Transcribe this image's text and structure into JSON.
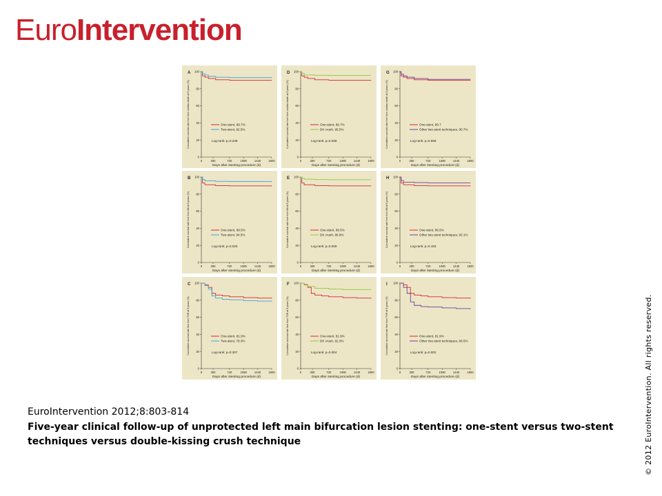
{
  "header": {
    "logo_light": "Euro",
    "logo_bold": "Intervention"
  },
  "caption": {
    "citation": "EuroIntervention 2012;8:803-814",
    "title": "Five-year clinical follow-up of unprotected left main bifurcation lesion stenting: one-stent versus two-stent techniques versus double-kissing crush technique"
  },
  "copyright": "© 2012 EuroIntervention. All rights reserved.",
  "colors": {
    "panel_bg": "#ece6c6",
    "one_stent": "#d9232e",
    "two_stent": "#3aa3d8",
    "dk_crush": "#8cc63f",
    "other_two_stent": "#6b3d9a"
  },
  "chart_data": [
    {
      "type": "line",
      "panel": "A",
      "xlabel": "Days after stenting procedure (d)",
      "ylabel": "Cumulative survival rate free from cardiac death at 5 years (%)",
      "x_ticks": [
        0,
        300,
        720,
        1080,
        1440,
        1800
      ],
      "y_ticks": [
        0,
        20,
        40,
        60,
        80,
        100
      ],
      "xlim": [
        0,
        1800
      ],
      "ylim": [
        0,
        100
      ],
      "logrank": "Log-rank: p=0.238",
      "series": [
        {
          "name": "One-stent, 89.7%",
          "color": "#d9232e",
          "x": [
            0,
            30,
            90,
            180,
            365,
            720,
            1800
          ],
          "y": [
            100,
            95,
            93.5,
            92,
            90.5,
            90,
            89.7
          ]
        },
        {
          "name": "Two-stent, 92.5%",
          "color": "#3aa3d8",
          "x": [
            0,
            30,
            90,
            180,
            365,
            720,
            1800
          ],
          "y": [
            100,
            97.5,
            96,
            94.5,
            93.5,
            93,
            92.5
          ]
        }
      ]
    },
    {
      "type": "line",
      "panel": "B",
      "xlabel": "Days after stenting procedure (d)",
      "ylabel": "Cumulative survival rate free from MI at 5 years (%)",
      "x_ticks": [
        0,
        300,
        720,
        1080,
        1440,
        1800
      ],
      "y_ticks": [
        0,
        20,
        40,
        60,
        80,
        100
      ],
      "xlim": [
        0,
        1800
      ],
      "ylim": [
        0,
        100
      ],
      "logrank": "Log-rank: p=0.025",
      "series": [
        {
          "name": "One-stent, 89.5%",
          "color": "#d9232e",
          "x": [
            0,
            30,
            90,
            365,
            720,
            1800
          ],
          "y": [
            100,
            93,
            91,
            90,
            89.7,
            89.5
          ]
        },
        {
          "name": "Two-stent, 94.5%",
          "color": "#3aa3d8",
          "x": [
            0,
            30,
            90,
            365,
            720,
            1800
          ],
          "y": [
            100,
            97,
            95.5,
            95,
            94.7,
            94.5
          ]
        }
      ]
    },
    {
      "type": "line",
      "panel": "C",
      "xlabel": "Days after stenting procedure (d)",
      "ylabel": "Cumulative survival rate free from TVR at 5 years (%)",
      "x_ticks": [
        0,
        300,
        720,
        1080,
        1440,
        1800
      ],
      "y_ticks": [
        0,
        20,
        40,
        60,
        80,
        100
      ],
      "xlim": [
        0,
        1800
      ],
      "ylim": [
        0,
        100
      ],
      "logrank": "Log-rank: p=0.307",
      "series": [
        {
          "name": "One-stent, 81.9%",
          "color": "#d9232e",
          "x": [
            0,
            90,
            180,
            270,
            365,
            540,
            720,
            1080,
            1440,
            1800
          ],
          "y": [
            100,
            98,
            95,
            88,
            86,
            85,
            84,
            83,
            82.5,
            81.9
          ]
        },
        {
          "name": "Two-stent, 78.3%",
          "color": "#3aa3d8",
          "x": [
            0,
            90,
            180,
            270,
            365,
            540,
            720,
            1080,
            1440,
            1800
          ],
          "y": [
            100,
            97,
            93,
            85,
            82.5,
            81,
            80.5,
            79.5,
            79,
            78.3
          ]
        }
      ]
    },
    {
      "type": "line",
      "panel": "D",
      "xlabel": "Days after stenting procedure (d)",
      "ylabel": "Cumulative survival rate free from cardiac death at 5 years (%)",
      "x_ticks": [
        0,
        300,
        720,
        1080,
        1440,
        1800
      ],
      "y_ticks": [
        0,
        20,
        40,
        60,
        80,
        100
      ],
      "xlim": [
        0,
        1800
      ],
      "ylim": [
        0,
        100
      ],
      "logrank": "Log-rank: p=0.038",
      "series": [
        {
          "name": "One-stent, 89.7%",
          "color": "#d9232e",
          "x": [
            0,
            30,
            90,
            180,
            365,
            720,
            1800
          ],
          "y": [
            100,
            95,
            93.5,
            92,
            90.5,
            90,
            89.7
          ]
        },
        {
          "name": "DK crush, 95.5%",
          "color": "#8cc63f",
          "x": [
            0,
            30,
            90,
            365,
            720,
            1800
          ],
          "y": [
            100,
            98,
            96,
            95.7,
            95.5,
            95.5
          ]
        }
      ]
    },
    {
      "type": "line",
      "panel": "E",
      "xlabel": "Days after stenting procedure (d)",
      "ylabel": "Cumulative survival rate free from MI at 5 years (%)",
      "x_ticks": [
        0,
        300,
        720,
        1080,
        1440,
        1800
      ],
      "y_ticks": [
        0,
        20,
        40,
        60,
        80,
        100
      ],
      "xlim": [
        0,
        1800
      ],
      "ylim": [
        0,
        100
      ],
      "logrank": "Log-rank: p=0.009",
      "series": [
        {
          "name": "One-stent, 89.5%",
          "color": "#d9232e",
          "x": [
            0,
            30,
            90,
            365,
            720,
            1800
          ],
          "y": [
            100,
            93,
            91,
            90,
            89.7,
            89.5
          ]
        },
        {
          "name": "DK crush, 96.8%",
          "color": "#8cc63f",
          "x": [
            0,
            30,
            90,
            365,
            720,
            1800
          ],
          "y": [
            100,
            98.5,
            97.5,
            97,
            96.8,
            96.8
          ]
        }
      ]
    },
    {
      "type": "line",
      "panel": "F",
      "xlabel": "Days after stenting procedure (d)",
      "ylabel": "Cumulative survival rate free from TVR at 5 years (%)",
      "x_ticks": [
        0,
        300,
        720,
        1080,
        1440,
        1800
      ],
      "y_ticks": [
        0,
        20,
        40,
        60,
        80,
        100
      ],
      "xlim": [
        0,
        1800
      ],
      "ylim": [
        0,
        100
      ],
      "logrank": "Log-rank: p=0.004",
      "series": [
        {
          "name": "One-stent, 81.9%",
          "color": "#d9232e",
          "x": [
            0,
            90,
            180,
            270,
            365,
            540,
            720,
            1080,
            1440,
            1800
          ],
          "y": [
            100,
            98,
            95,
            88,
            86,
            85,
            84,
            83,
            82.5,
            81.9
          ]
        },
        {
          "name": "DK crush, 92.3%",
          "color": "#8cc63f",
          "x": [
            0,
            90,
            180,
            365,
            720,
            1080,
            1800
          ],
          "y": [
            100,
            98.5,
            96,
            94,
            93,
            92.5,
            92.3
          ]
        }
      ]
    },
    {
      "type": "line",
      "panel": "G",
      "xlabel": "Days after stenting procedure (d)",
      "ylabel": "Cumulative survival rate free from cardiac death at 5 years (%)",
      "x_ticks": [
        0,
        300,
        720,
        1080,
        1440,
        1800
      ],
      "y_ticks": [
        0,
        20,
        40,
        60,
        80,
        100
      ],
      "xlim": [
        0,
        1800
      ],
      "ylim": [
        0,
        100
      ],
      "logrank": "Log-rank: p=0.669",
      "series": [
        {
          "name": "One-stent, 89.7",
          "color": "#d9232e",
          "x": [
            0,
            30,
            90,
            180,
            365,
            720,
            1800
          ],
          "y": [
            100,
            95,
            93.5,
            92,
            90.5,
            90,
            89.7
          ]
        },
        {
          "name": "Other two-stent techniques, 90.7%",
          "color": "#6b3d9a",
          "x": [
            0,
            30,
            90,
            180,
            365,
            720,
            1800
          ],
          "y": [
            100,
            97,
            95,
            93.5,
            92,
            91,
            90.7
          ]
        }
      ]
    },
    {
      "type": "line",
      "panel": "H",
      "xlabel": "Days after stenting procedure (d)",
      "ylabel": "Cumulative survival rate free from MI at 5 years (%)",
      "x_ticks": [
        0,
        300,
        720,
        1080,
        1440,
        1800
      ],
      "y_ticks": [
        0,
        20,
        40,
        60,
        80,
        100
      ],
      "xlim": [
        0,
        1800
      ],
      "ylim": [
        0,
        100
      ],
      "logrank": "Log-rank: p=0.183",
      "series": [
        {
          "name": "One-stent, 89.5%",
          "color": "#d9232e",
          "x": [
            0,
            30,
            90,
            365,
            720,
            1800
          ],
          "y": [
            100,
            93,
            91,
            90,
            89.7,
            89.5
          ]
        },
        {
          "name": "Other two-stent techniques, 93.1%",
          "color": "#6b3d9a",
          "x": [
            0,
            30,
            90,
            365,
            720,
            1800
          ],
          "y": [
            100,
            96,
            94,
            93.5,
            93.2,
            93.1
          ]
        }
      ]
    },
    {
      "type": "line",
      "panel": "I",
      "xlabel": "Days after stenting procedure (d)",
      "ylabel": "Cumulative survival rate free from TVR at 5 years (%)",
      "x_ticks": [
        0,
        300,
        720,
        1080,
        1440,
        1800
      ],
      "y_ticks": [
        0,
        20,
        40,
        60,
        80,
        100
      ],
      "xlim": [
        0,
        1800
      ],
      "ylim": [
        0,
        100
      ],
      "logrank": "Log-rank: p=0.002",
      "series": [
        {
          "name": "One-stent, 81.9%",
          "color": "#d9232e",
          "x": [
            0,
            90,
            180,
            270,
            365,
            540,
            720,
            1080,
            1440,
            1800
          ],
          "y": [
            100,
            98,
            95,
            88,
            86,
            85,
            84,
            83,
            82.5,
            81.9
          ]
        },
        {
          "name": "Other two-stent techniques, 69.5%",
          "color": "#6b3d9a",
          "x": [
            0,
            90,
            180,
            270,
            365,
            540,
            720,
            1080,
            1440,
            1800
          ],
          "y": [
            100,
            95,
            88,
            78,
            74,
            72.5,
            72,
            71,
            70.2,
            69.5
          ]
        }
      ]
    }
  ]
}
